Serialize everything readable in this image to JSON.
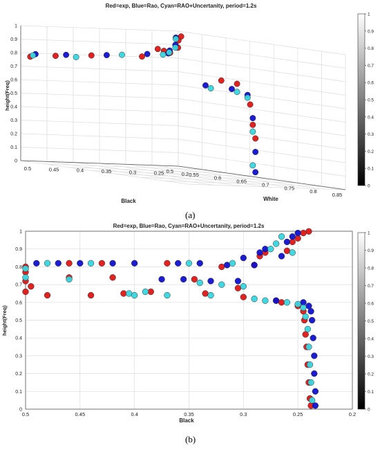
{
  "chart_data": [
    {
      "type": "scatter",
      "projection": "3d",
      "title": "Red=exp, Blue=Rao, Cyan=RAO+Uncertanity, period=1.2s",
      "xlabel": "Black",
      "ylabel": "White",
      "zlabel": "height(Freq)",
      "xlim": [
        0.2,
        0.5
      ],
      "ylim": [
        0.5,
        0.85
      ],
      "zlim": [
        0,
        1
      ],
      "xticks": [
        "0.5",
        "0.45",
        "0.4",
        "0.35",
        "0.3",
        "0.25",
        "0.2"
      ],
      "yticks": [
        "0.85",
        "0.8",
        "0.75",
        "0.7",
        "0.65",
        "0.6",
        "0.55",
        "0.5"
      ],
      "zticks": [
        "0",
        "0.1",
        "0.2",
        "0.3",
        "0.4",
        "0.5",
        "0.6",
        "0.7",
        "0.8",
        "0.9",
        "1"
      ],
      "grid": true,
      "colorbar": {
        "ticks": [
          "0",
          "0.1",
          "0.2",
          "0.3",
          "0.4",
          "0.5",
          "0.6",
          "0.7",
          "0.8",
          "0.9",
          "1"
        ],
        "colormap": "gray"
      },
      "series": [
        {
          "color": "#e01515",
          "points": [
            [
              0.5,
              0.52,
              0.78
            ],
            [
              0.47,
              0.54,
              0.8
            ],
            [
              0.42,
              0.56,
              0.82
            ],
            [
              0.36,
              0.6,
              0.84
            ],
            [
              0.33,
              0.6,
              0.9
            ],
            [
              0.3,
              0.58,
              0.88
            ],
            [
              0.27,
              0.56,
              0.86
            ],
            [
              0.255,
              0.56,
              0.9
            ],
            [
              0.245,
              0.55,
              0.95
            ],
            [
              0.24,
              0.55,
              0.98
            ],
            [
              0.3,
              0.7,
              0.72
            ],
            [
              0.27,
              0.7,
              0.7
            ],
            [
              0.245,
              0.7,
              0.55
            ],
            [
              0.24,
              0.7,
              0.4
            ],
            [
              0.235,
              0.7,
              0.3
            ]
          ]
        },
        {
          "color": "#1010d0",
          "points": [
            [
              0.49,
              0.52,
              0.8
            ],
            [
              0.45,
              0.54,
              0.81
            ],
            [
              0.4,
              0.57,
              0.83
            ],
            [
              0.35,
              0.6,
              0.86
            ],
            [
              0.31,
              0.6,
              0.87
            ],
            [
              0.28,
              0.57,
              0.88
            ],
            [
              0.26,
              0.56,
              0.92
            ],
            [
              0.25,
              0.55,
              0.97
            ],
            [
              0.33,
              0.7,
              0.68
            ],
            [
              0.28,
              0.7,
              0.66
            ],
            [
              0.25,
              0.7,
              0.62
            ],
            [
              0.24,
              0.7,
              0.45
            ],
            [
              0.235,
              0.7,
              0.2
            ],
            [
              0.235,
              0.7,
              0.05
            ]
          ]
        },
        {
          "color": "#38d6e0",
          "points": [
            [
              0.495,
              0.52,
              0.79
            ],
            [
              0.44,
              0.55,
              0.8
            ],
            [
              0.38,
              0.58,
              0.84
            ],
            [
              0.32,
              0.6,
              0.86
            ],
            [
              0.29,
              0.58,
              0.87
            ],
            [
              0.26,
              0.56,
              0.9
            ],
            [
              0.25,
              0.55,
              0.96
            ],
            [
              0.32,
              0.7,
              0.66
            ],
            [
              0.27,
              0.7,
              0.64
            ],
            [
              0.25,
              0.7,
              0.6
            ],
            [
              0.24,
              0.7,
              0.35
            ],
            [
              0.24,
              0.7,
              0.1
            ]
          ]
        }
      ]
    },
    {
      "type": "scatter",
      "title": "Red=exp, Blue=Rao, Cyan=RAO+Uncertanity, period=1.2s",
      "xlabel": "Black",
      "ylabel": "height(Freq)",
      "xlim": [
        0.2,
        0.5
      ],
      "x_reversed": true,
      "ylim": [
        0,
        1
      ],
      "xticks": [
        "0.5",
        "0.45",
        "0.4",
        "0.35",
        "0.3",
        "0.25",
        "0.2"
      ],
      "yticks": [
        "0",
        "0.1",
        "0.2",
        "0.3",
        "0.4",
        "0.5",
        "0.6",
        "0.7",
        "0.8",
        "0.9",
        "1"
      ],
      "grid": true,
      "colorbar": {
        "ticks": [
          "0",
          "0.1",
          "0.2",
          "0.3",
          "0.4",
          "0.5",
          "0.6",
          "0.7",
          "0.8",
          "0.9",
          "1"
        ],
        "colormap": "gray"
      },
      "series": [
        {
          "color": "#e01515",
          "points": [
            [
              0.5,
              0.8
            ],
            [
              0.5,
              0.77
            ],
            [
              0.5,
              0.72
            ],
            [
              0.5,
              0.66
            ],
            [
              0.495,
              0.69
            ],
            [
              0.48,
              0.64
            ],
            [
              0.46,
              0.82
            ],
            [
              0.46,
              0.74
            ],
            [
              0.44,
              0.64
            ],
            [
              0.43,
              0.82
            ],
            [
              0.42,
              0.74
            ],
            [
              0.41,
              0.65
            ],
            [
              0.385,
              0.66
            ],
            [
              0.37,
              0.82
            ],
            [
              0.345,
              0.73
            ],
            [
              0.335,
              0.65
            ],
            [
              0.32,
              0.8
            ],
            [
              0.305,
              0.68
            ],
            [
              0.3,
              0.63
            ],
            [
              0.29,
              0.81
            ],
            [
              0.285,
              0.86
            ],
            [
              0.28,
              0.88
            ],
            [
              0.27,
              0.61
            ],
            [
              0.265,
              0.6
            ],
            [
              0.26,
              0.89
            ],
            [
              0.255,
              0.94
            ],
            [
              0.25,
              0.96
            ],
            [
              0.245,
              0.99
            ],
            [
              0.24,
              0.999
            ],
            [
              0.25,
              0.58
            ],
            [
              0.245,
              0.55
            ],
            [
              0.244,
              0.5
            ],
            [
              0.243,
              0.42
            ],
            [
              0.242,
              0.35
            ],
            [
              0.241,
              0.25
            ],
            [
              0.24,
              0.15
            ],
            [
              0.239,
              0.06
            ],
            [
              0.238,
              0.02
            ]
          ]
        },
        {
          "color": "#1010d0",
          "points": [
            [
              0.49,
              0.82
            ],
            [
              0.47,
              0.82
            ],
            [
              0.45,
              0.82
            ],
            [
              0.42,
              0.82
            ],
            [
              0.4,
              0.82
            ],
            [
              0.375,
              0.73
            ],
            [
              0.36,
              0.82
            ],
            [
              0.355,
              0.73
            ],
            [
              0.34,
              0.82
            ],
            [
              0.33,
              0.72
            ],
            [
              0.315,
              0.81
            ],
            [
              0.305,
              0.72
            ],
            [
              0.3,
              0.85
            ],
            [
              0.29,
              0.81
            ],
            [
              0.285,
              0.88
            ],
            [
              0.28,
              0.9
            ],
            [
              0.27,
              0.61
            ],
            [
              0.265,
              0.86
            ],
            [
              0.26,
              0.94
            ],
            [
              0.255,
              0.97
            ],
            [
              0.25,
              0.99
            ],
            [
              0.245,
              0.6
            ],
            [
              0.24,
              0.58
            ],
            [
              0.238,
              0.55
            ],
            [
              0.237,
              0.5
            ],
            [
              0.236,
              0.4
            ],
            [
              0.235,
              0.3
            ],
            [
              0.235,
              0.2
            ],
            [
              0.234,
              0.1
            ],
            [
              0.234,
              0.02
            ]
          ]
        },
        {
          "color": "#38d6e0",
          "points": [
            [
              0.5,
              0.79
            ],
            [
              0.5,
              0.74
            ],
            [
              0.48,
              0.82
            ],
            [
              0.46,
              0.73
            ],
            [
              0.44,
              0.82
            ],
            [
              0.405,
              0.65
            ],
            [
              0.4,
              0.64
            ],
            [
              0.39,
              0.66
            ],
            [
              0.37,
              0.64
            ],
            [
              0.35,
              0.82
            ],
            [
              0.34,
              0.71
            ],
            [
              0.33,
              0.64
            ],
            [
              0.32,
              0.7
            ],
            [
              0.31,
              0.82
            ],
            [
              0.3,
              0.69
            ],
            [
              0.29,
              0.62
            ],
            [
              0.28,
              0.61
            ],
            [
              0.275,
              0.9
            ],
            [
              0.27,
              0.93
            ],
            [
              0.265,
              0.97
            ],
            [
              0.26,
              0.6
            ],
            [
              0.255,
              0.88
            ],
            [
              0.25,
              0.59
            ],
            [
              0.245,
              0.57
            ],
            [
              0.243,
              0.52
            ],
            [
              0.241,
              0.45
            ],
            [
              0.24,
              0.35
            ],
            [
              0.239,
              0.25
            ],
            [
              0.238,
              0.15
            ],
            [
              0.237,
              0.05
            ]
          ]
        }
      ]
    }
  ],
  "captions": [
    "(a)",
    "(b)"
  ]
}
